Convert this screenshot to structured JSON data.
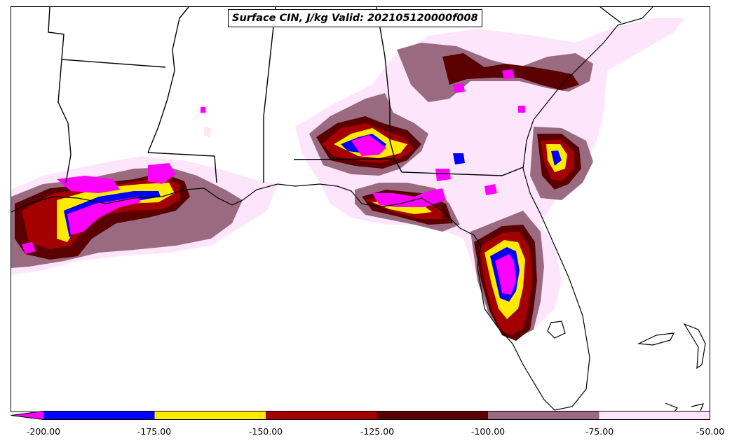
{
  "title": "Surface CIN, J/kg Valid: 202105120000f008",
  "colorbar": {
    "ticks": [
      "-200.00",
      "-175.00",
      "-150.00",
      "-125.00",
      "-100.00",
      "-75.00",
      "-50.00"
    ],
    "extend": "min",
    "bins": [
      {
        "range": [
          -250,
          -200
        ],
        "color": "#ff00ff"
      },
      {
        "range": [
          -200,
          -175
        ],
        "color": "#0000ff"
      },
      {
        "range": [
          -175,
          -150
        ],
        "color": "#ffea00"
      },
      {
        "range": [
          -150,
          -125
        ],
        "color": "#a50000"
      },
      {
        "range": [
          -125,
          -100
        ],
        "color": "#5a0000"
      },
      {
        "range": [
          -100,
          -75
        ],
        "color": "#9a6b80"
      },
      {
        "range": [
          -75,
          -50
        ],
        "color": "#fde6fb"
      }
    ]
  }
}
